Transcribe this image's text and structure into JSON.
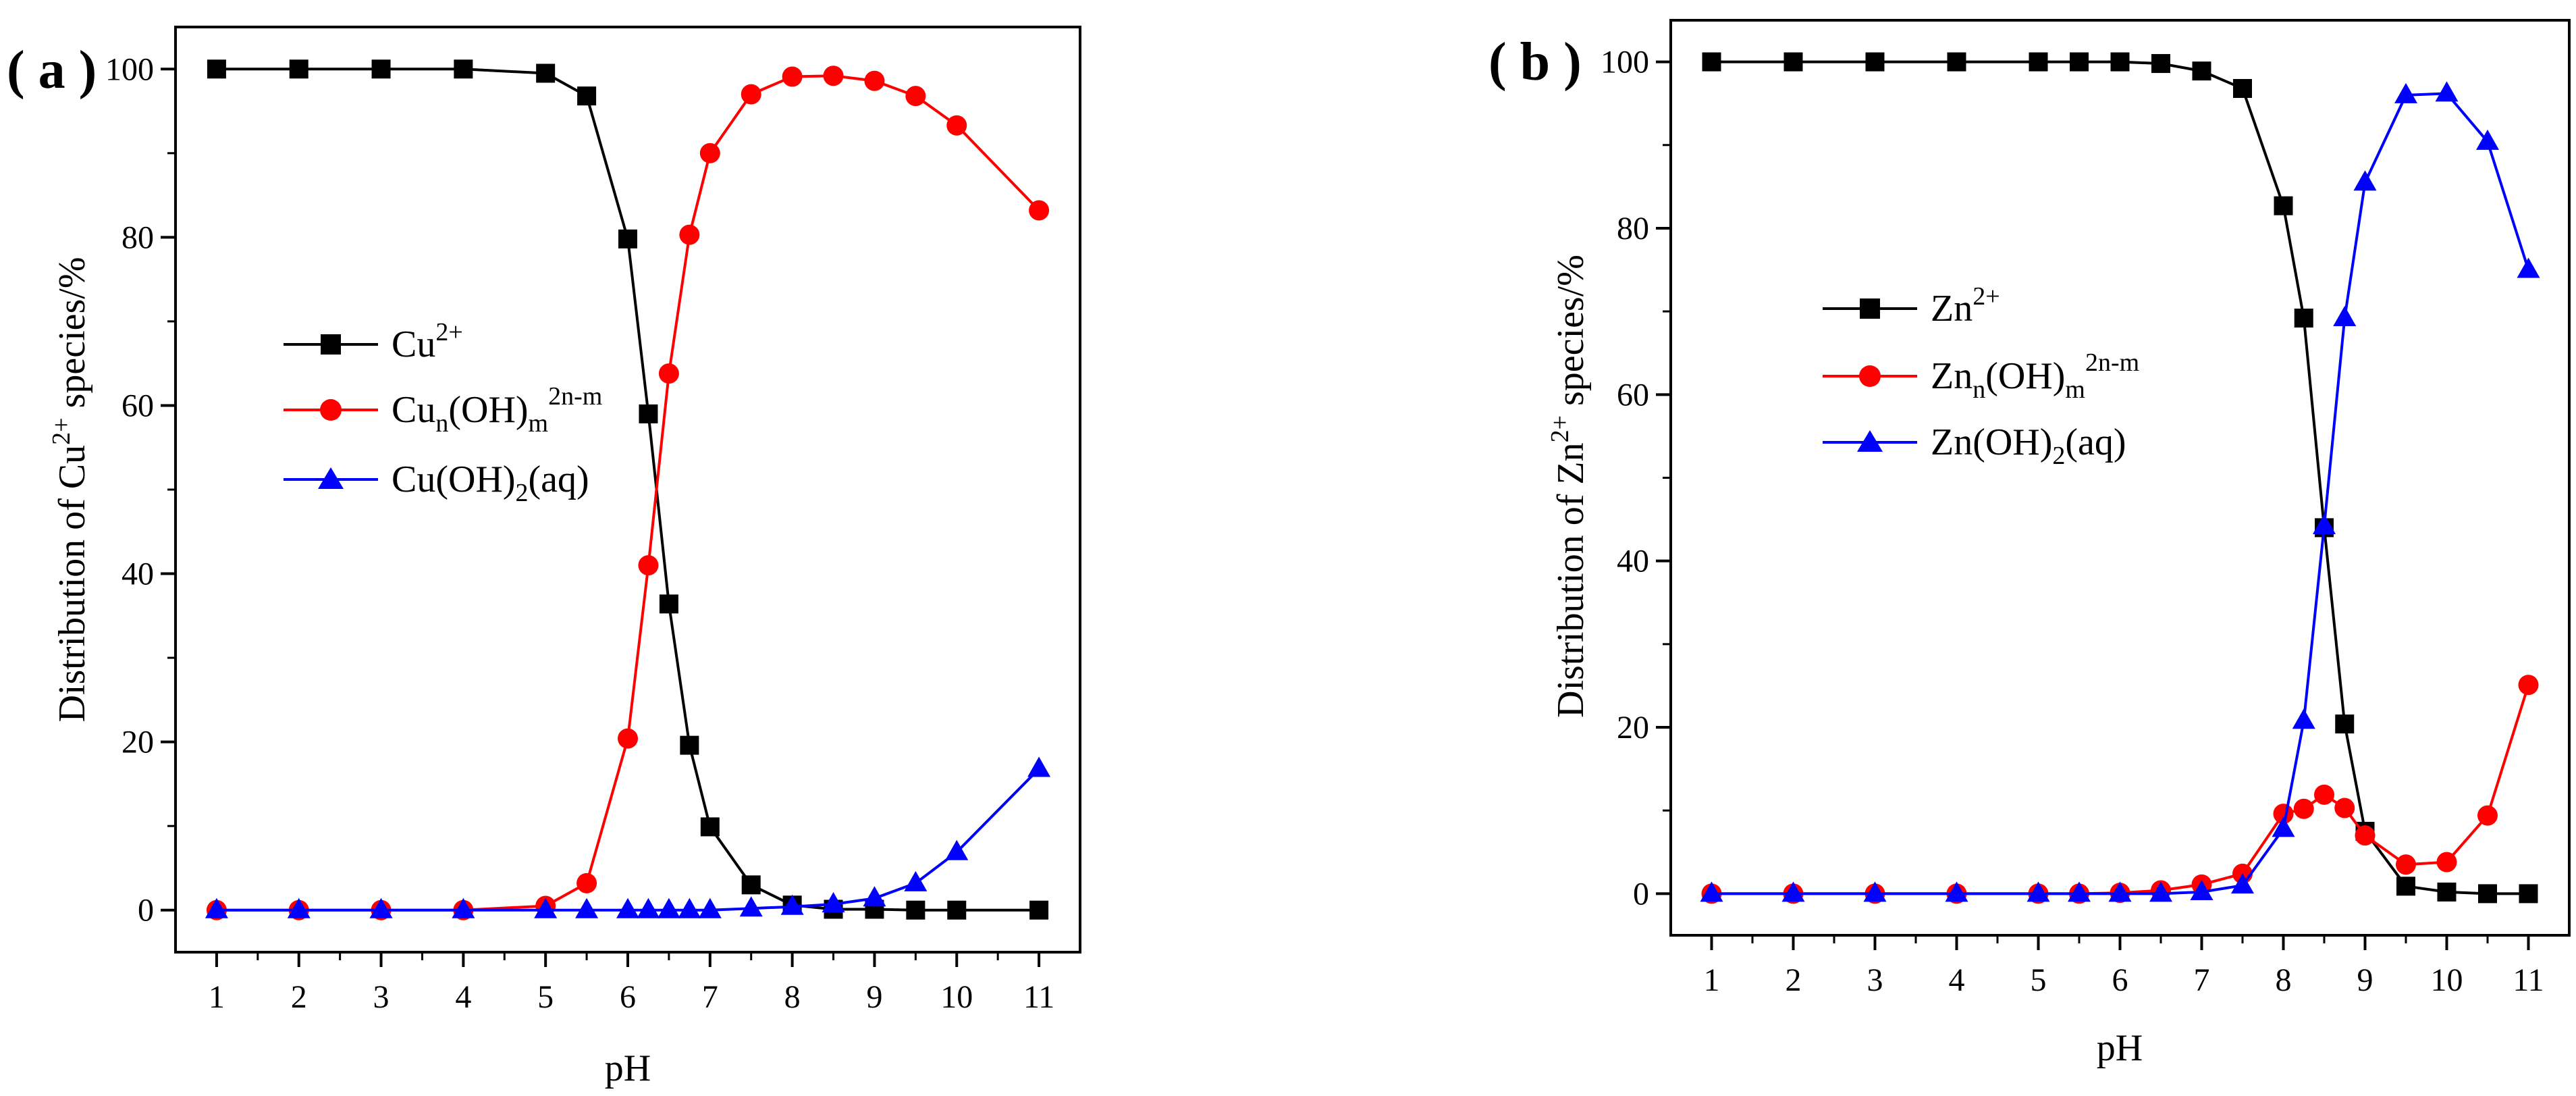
{
  "figure": {
    "panels": [
      {
        "id": "a",
        "label": "( a )"
      },
      {
        "id": "b",
        "label": "( b )"
      }
    ]
  },
  "chart_data": [
    {
      "type": "line",
      "panel": "a",
      "xlabel": "pH",
      "ylabel": {
        "pre": "Distribution of Cu",
        "sup": "2+",
        "post": " species/%"
      },
      "xlim": [
        0.5,
        11.5
      ],
      "ylim": [
        -5,
        105
      ],
      "xticks": [
        1,
        2,
        3,
        4,
        5,
        6,
        7,
        8,
        9,
        10,
        11
      ],
      "yticks": [
        0,
        20,
        40,
        60,
        80,
        100
      ],
      "legend_position": "center-left",
      "series": [
        {
          "key": "cu",
          "legend": {
            "base": "Cu",
            "sup": "2+"
          },
          "color": "#000000",
          "marker": "square",
          "x": [
            1,
            2,
            3,
            4,
            5,
            5.5,
            6,
            6.25,
            6.5,
            6.75,
            7,
            7.5,
            8,
            8.5,
            9,
            9.5,
            10,
            11
          ],
          "y": [
            100,
            100,
            100,
            100,
            99.5,
            96.8,
            79.8,
            59,
            36.4,
            19.6,
            9.9,
            3,
            0.6,
            0.1,
            0.1,
            0,
            0,
            0
          ]
        },
        {
          "key": "cuoh",
          "legend": {
            "base": "Cu",
            "sub": "n",
            "mid": "(OH)",
            "sub2": "m",
            "sup": "2n-m"
          },
          "color": "#ff0000",
          "marker": "circle",
          "x": [
            1,
            2,
            3,
            4,
            5,
            5.5,
            6,
            6.25,
            6.5,
            6.75,
            7,
            7.5,
            8,
            8.5,
            9,
            9.5,
            10,
            11
          ],
          "y": [
            0,
            0,
            0,
            0,
            0.5,
            3.2,
            20.4,
            41,
            63.8,
            80.3,
            90,
            97,
            99.1,
            99.2,
            98.6,
            96.8,
            93.3,
            83.2
          ]
        },
        {
          "key": "cuoh2",
          "legend": {
            "base": "Cu(OH)",
            "sub": "2",
            "post": "(aq)"
          },
          "color": "#0000ff",
          "marker": "triangle",
          "x": [
            1,
            2,
            3,
            4,
            5,
            5.5,
            6,
            6.25,
            6.5,
            6.75,
            7,
            7.5,
            8,
            8.5,
            9,
            9.5,
            10,
            11
          ],
          "y": [
            0,
            0,
            0,
            0,
            0,
            0,
            0,
            0,
            0,
            0,
            0,
            0.2,
            0.4,
            0.7,
            1.4,
            3.2,
            6.9,
            16.8
          ]
        }
      ]
    },
    {
      "type": "line",
      "panel": "b",
      "xlabel": "pH",
      "ylabel": {
        "pre": "Distribution of Zn",
        "sup": "2+",
        "post": " species/%"
      },
      "xlim": [
        0.5,
        11.5
      ],
      "ylim": [
        -5,
        105
      ],
      "xticks": [
        1,
        2,
        3,
        4,
        5,
        6,
        7,
        8,
        9,
        10,
        11
      ],
      "yticks": [
        0,
        20,
        40,
        60,
        80,
        100
      ],
      "legend_position": "center-left",
      "series": [
        {
          "key": "zn",
          "legend": {
            "base": "Zn",
            "sup": "2+"
          },
          "color": "#000000",
          "marker": "square",
          "x": [
            1,
            2,
            3,
            4,
            5,
            5.5,
            6,
            6.5,
            7,
            7.5,
            8,
            8.25,
            8.5,
            8.75,
            9,
            9.5,
            10,
            10.5,
            11
          ],
          "y": [
            100,
            100,
            100,
            100,
            100,
            100,
            100,
            99.8,
            98.9,
            96.8,
            82.7,
            69.2,
            44,
            20.4,
            7.5,
            0.9,
            0.2,
            0,
            0
          ]
        },
        {
          "key": "znoh",
          "legend": {
            "base": "Zn",
            "sub": "n",
            "mid": "(OH)",
            "sub2": "m",
            "sup": "2n-m"
          },
          "color": "#ff0000",
          "marker": "circle",
          "x": [
            1,
            2,
            3,
            4,
            5,
            5.5,
            6,
            6.5,
            7,
            7.5,
            8,
            8.25,
            8.5,
            8.75,
            9,
            9.5,
            10,
            10.5,
            11
          ],
          "y": [
            0,
            0,
            0,
            0,
            0,
            0,
            0.1,
            0.4,
            1.1,
            2.4,
            9.6,
            10.2,
            11.9,
            10.3,
            7,
            3.5,
            3.8,
            9.4,
            25.1
          ]
        },
        {
          "key": "znoh2",
          "legend": {
            "base": "Zn(OH)",
            "sub": "2",
            "post": "(aq)"
          },
          "color": "#0000ff",
          "marker": "triangle",
          "x": [
            1,
            2,
            3,
            4,
            5,
            5.5,
            6,
            6.5,
            7,
            7.5,
            8,
            8.25,
            8.5,
            8.75,
            9,
            9.5,
            10,
            10.5,
            11
          ],
          "y": [
            0,
            0,
            0,
            0,
            0,
            0,
            0,
            0,
            0.2,
            1,
            7.8,
            20.8,
            44.2,
            69.2,
            85.5,
            96,
            96.2,
            90.4,
            75
          ]
        }
      ]
    }
  ]
}
